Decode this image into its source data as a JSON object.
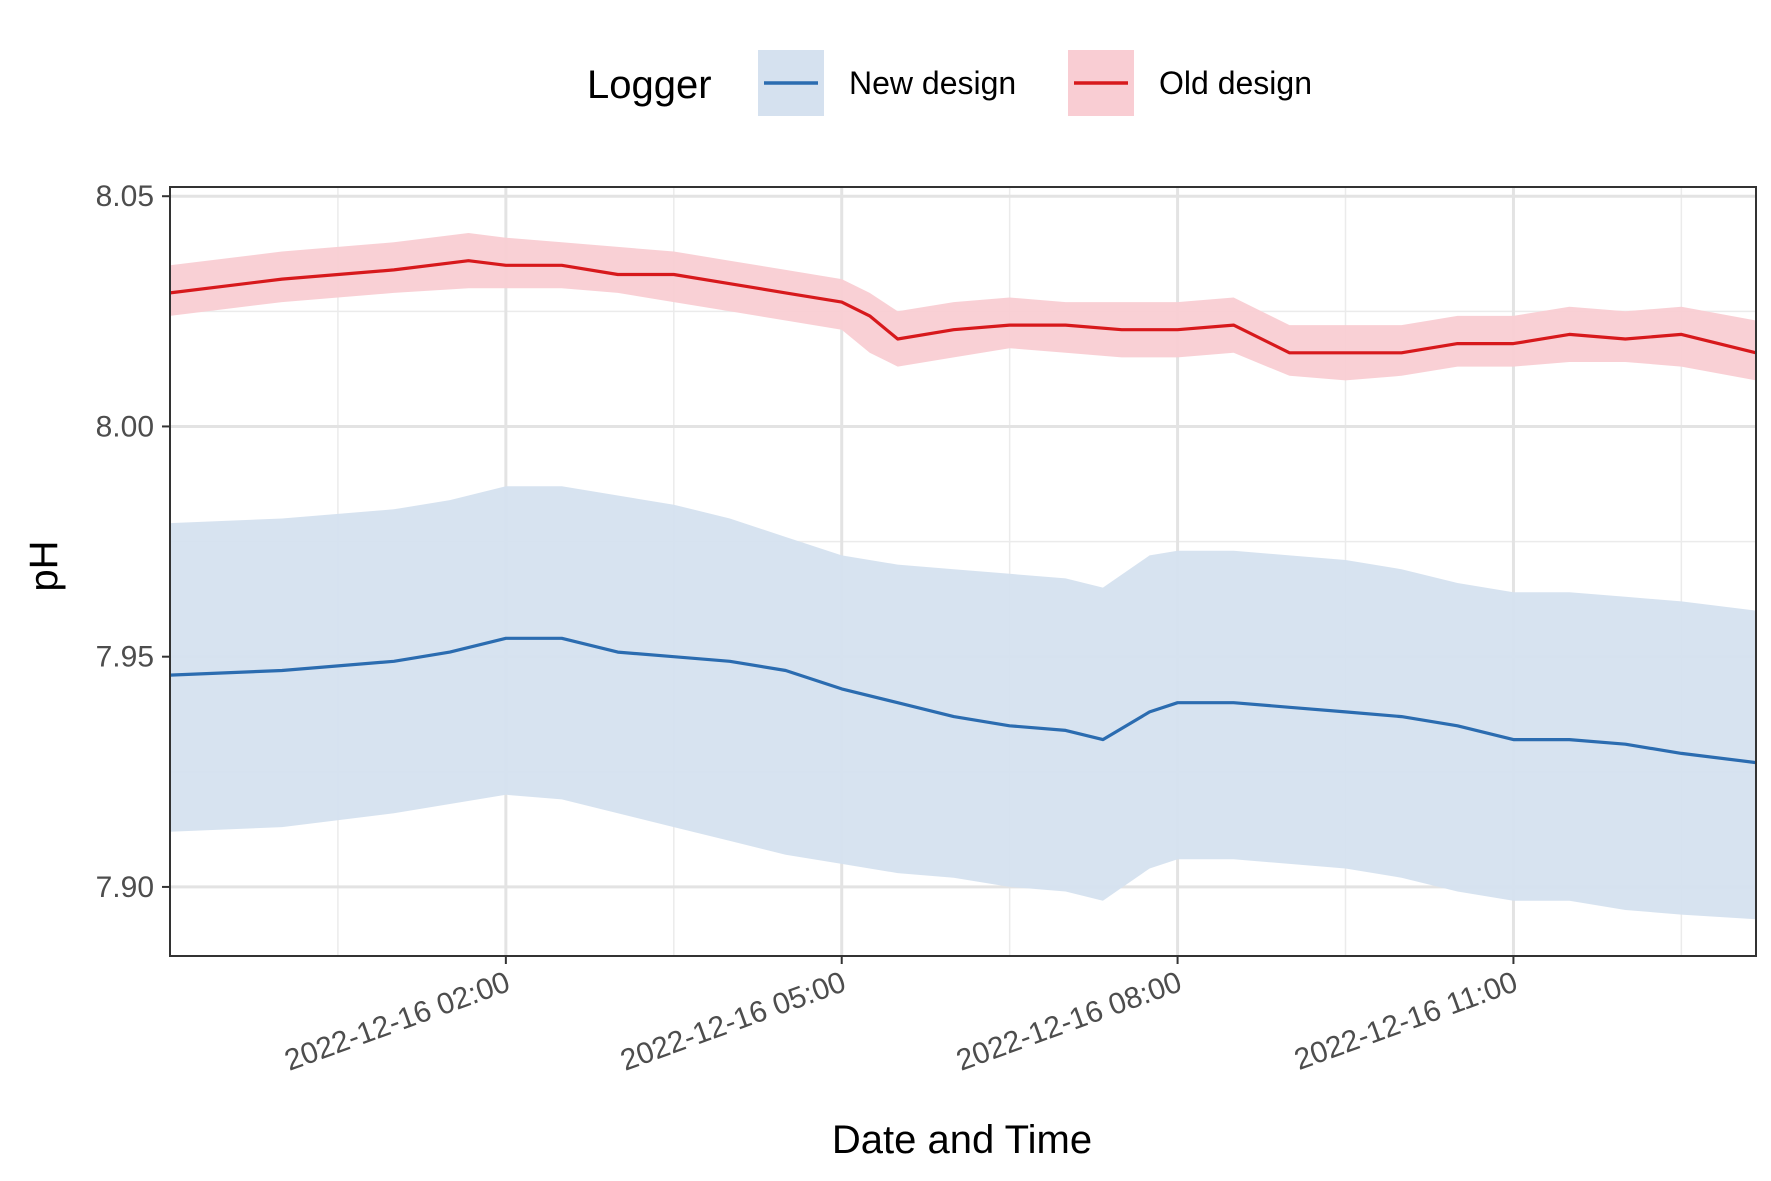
{
  "chart_data": {
    "type": "line",
    "title": "",
    "xlabel": "Date and Time",
    "ylabel": "pH",
    "x_tick_labels": [
      "2022-12-16 02:00",
      "2022-12-16 05:00",
      "2022-12-16 08:00",
      "2022-12-16 11:00"
    ],
    "y_tick_labels": [
      "7.90",
      "7.95",
      "8.00",
      "8.05"
    ],
    "xlim": [
      "2022-12-15 23:00",
      "2022-12-16 13:10"
    ],
    "ylim": [
      7.885,
      8.052
    ],
    "grid": true,
    "legend": {
      "title": "Logger",
      "position": "top"
    },
    "series": [
      {
        "name": "New design",
        "color": "#2b6cb0",
        "ribbon_color": "#d5e1ef",
        "x": [
          "2022-12-15 23:00",
          "2022-12-16 00:00",
          "2022-12-16 01:00",
          "2022-12-16 01:30",
          "2022-12-16 02:00",
          "2022-12-16 02:30",
          "2022-12-16 03:00",
          "2022-12-16 03:30",
          "2022-12-16 04:00",
          "2022-12-16 04:30",
          "2022-12-16 05:00",
          "2022-12-16 05:30",
          "2022-12-16 06:00",
          "2022-12-16 06:30",
          "2022-12-16 07:00",
          "2022-12-16 07:20",
          "2022-12-16 07:45",
          "2022-12-16 08:00",
          "2022-12-16 08:30",
          "2022-12-16 09:00",
          "2022-12-16 09:30",
          "2022-12-16 10:00",
          "2022-12-16 10:30",
          "2022-12-16 11:00",
          "2022-12-16 11:30",
          "2022-12-16 12:00",
          "2022-12-16 12:30",
          "2022-12-16 13:10"
        ],
        "y": [
          7.946,
          7.947,
          7.949,
          7.951,
          7.954,
          7.954,
          7.951,
          7.95,
          7.949,
          7.947,
          7.943,
          7.94,
          7.937,
          7.935,
          7.934,
          7.932,
          7.938,
          7.94,
          7.94,
          7.939,
          7.938,
          7.937,
          7.935,
          7.932,
          7.932,
          7.931,
          7.929,
          7.927
        ],
        "lower": [
          7.912,
          7.913,
          7.916,
          7.918,
          7.92,
          7.919,
          7.916,
          7.913,
          7.91,
          7.907,
          7.905,
          7.903,
          7.902,
          7.9,
          7.899,
          7.897,
          7.904,
          7.906,
          7.906,
          7.905,
          7.904,
          7.902,
          7.899,
          7.897,
          7.897,
          7.895,
          7.894,
          7.893
        ],
        "upper": [
          7.979,
          7.98,
          7.982,
          7.984,
          7.987,
          7.987,
          7.985,
          7.983,
          7.98,
          7.976,
          7.972,
          7.97,
          7.969,
          7.968,
          7.967,
          7.965,
          7.972,
          7.973,
          7.973,
          7.972,
          7.971,
          7.969,
          7.966,
          7.964,
          7.964,
          7.963,
          7.962,
          7.96
        ]
      },
      {
        "name": "Old design",
        "color": "#d7191c",
        "ribbon_color": "#f9cdd3",
        "x": [
          "2022-12-15 23:00",
          "2022-12-16 00:00",
          "2022-12-16 01:00",
          "2022-12-16 01:40",
          "2022-12-16 02:00",
          "2022-12-16 02:30",
          "2022-12-16 03:00",
          "2022-12-16 03:30",
          "2022-12-16 04:00",
          "2022-12-16 04:30",
          "2022-12-16 05:00",
          "2022-12-16 05:15",
          "2022-12-16 05:30",
          "2022-12-16 06:00",
          "2022-12-16 06:30",
          "2022-12-16 07:00",
          "2022-12-16 07:30",
          "2022-12-16 08:00",
          "2022-12-16 08:30",
          "2022-12-16 09:00",
          "2022-12-16 09:30",
          "2022-12-16 10:00",
          "2022-12-16 10:30",
          "2022-12-16 11:00",
          "2022-12-16 11:30",
          "2022-12-16 12:00",
          "2022-12-16 12:30",
          "2022-12-16 13:10"
        ],
        "y": [
          8.029,
          8.032,
          8.034,
          8.036,
          8.035,
          8.035,
          8.033,
          8.033,
          8.031,
          8.029,
          8.027,
          8.024,
          8.019,
          8.021,
          8.022,
          8.022,
          8.021,
          8.021,
          8.022,
          8.016,
          8.016,
          8.016,
          8.018,
          8.018,
          8.02,
          8.019,
          8.02,
          8.016
        ],
        "lower": [
          8.024,
          8.027,
          8.029,
          8.03,
          8.03,
          8.03,
          8.029,
          8.027,
          8.025,
          8.023,
          8.021,
          8.016,
          8.013,
          8.015,
          8.017,
          8.016,
          8.015,
          8.015,
          8.016,
          8.011,
          8.01,
          8.011,
          8.013,
          8.013,
          8.014,
          8.014,
          8.013,
          8.01
        ],
        "upper": [
          8.035,
          8.038,
          8.04,
          8.042,
          8.041,
          8.04,
          8.039,
          8.038,
          8.036,
          8.034,
          8.032,
          8.029,
          8.025,
          8.027,
          8.028,
          8.027,
          8.027,
          8.027,
          8.028,
          8.022,
          8.022,
          8.022,
          8.024,
          8.024,
          8.026,
          8.025,
          8.026,
          8.023
        ]
      }
    ]
  }
}
